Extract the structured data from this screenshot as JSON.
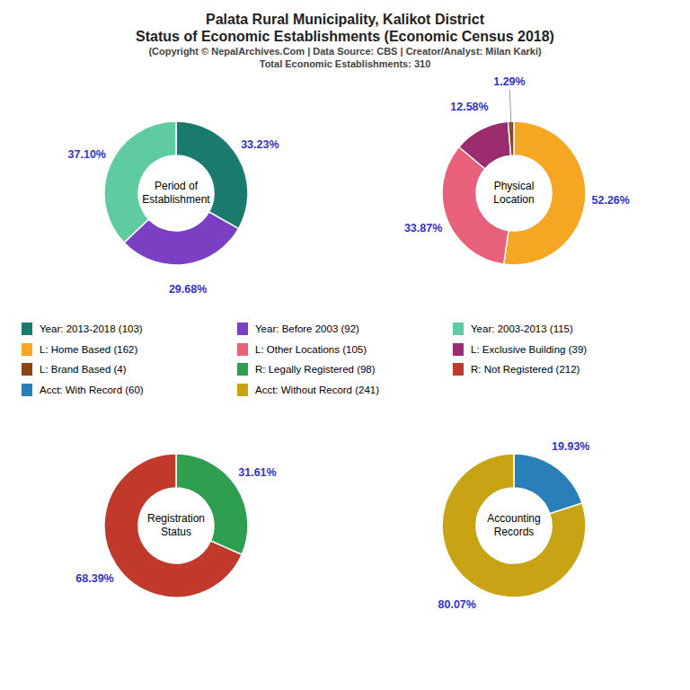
{
  "title": [
    "Palata Rural Municipality, Kalikot District",
    "Status of Economic Establishments (Economic Census 2018)"
  ],
  "subtitle": [
    "(Copyright © NepalArchives.Com | Data Source: CBS | Creator/Analyst: Milan Karki)",
    "Total Economic Establishments: 310"
  ],
  "chart_data": [
    {
      "type": "pie",
      "title": "Period of\nEstablishment",
      "categories": [
        "Year: 2013-2018 (103)",
        "Year: Before 2003 (92)",
        "Year: 2003-2013 (115)"
      ],
      "values": [
        33.23,
        29.68,
        37.1
      ],
      "value_labels": [
        "33.23%",
        "29.68%",
        "37.10%"
      ],
      "colors": [
        "#1a7a6e",
        "#7b3fc4",
        "#5ecba1"
      ],
      "data_labels": true
    },
    {
      "type": "pie",
      "title": "Physical\nLocation",
      "categories": [
        "L: Home Based (162)",
        "L: Other Locations (105)",
        "L: Exclusive Building (39)",
        "L: Brand Based (4)"
      ],
      "values": [
        52.26,
        33.87,
        12.58,
        1.29
      ],
      "value_labels": [
        "52.26%",
        "33.87%",
        "12.58%",
        "1.29%"
      ],
      "colors": [
        "#f5a623",
        "#e8607a",
        "#9b2c6e",
        "#8B4513"
      ],
      "data_labels": true
    },
    {
      "type": "pie",
      "title": "Registration\nStatus",
      "categories": [
        "R: Legally Registered (98)",
        "R: Not Registered (212)"
      ],
      "values": [
        31.61,
        68.39
      ],
      "value_labels": [
        "31.61%",
        "68.39%"
      ],
      "colors": [
        "#2e9e4f",
        "#c0392b"
      ],
      "data_labels": true
    },
    {
      "type": "pie",
      "title": "Accounting\nRecords",
      "categories": [
        "Acct: With Record (60)",
        "Acct: Without Record (241)"
      ],
      "values": [
        19.93,
        80.07
      ],
      "value_labels": [
        "19.93%",
        "80.07%"
      ],
      "colors": [
        "#2980b9",
        "#c8a415"
      ],
      "data_labels": true
    }
  ]
}
